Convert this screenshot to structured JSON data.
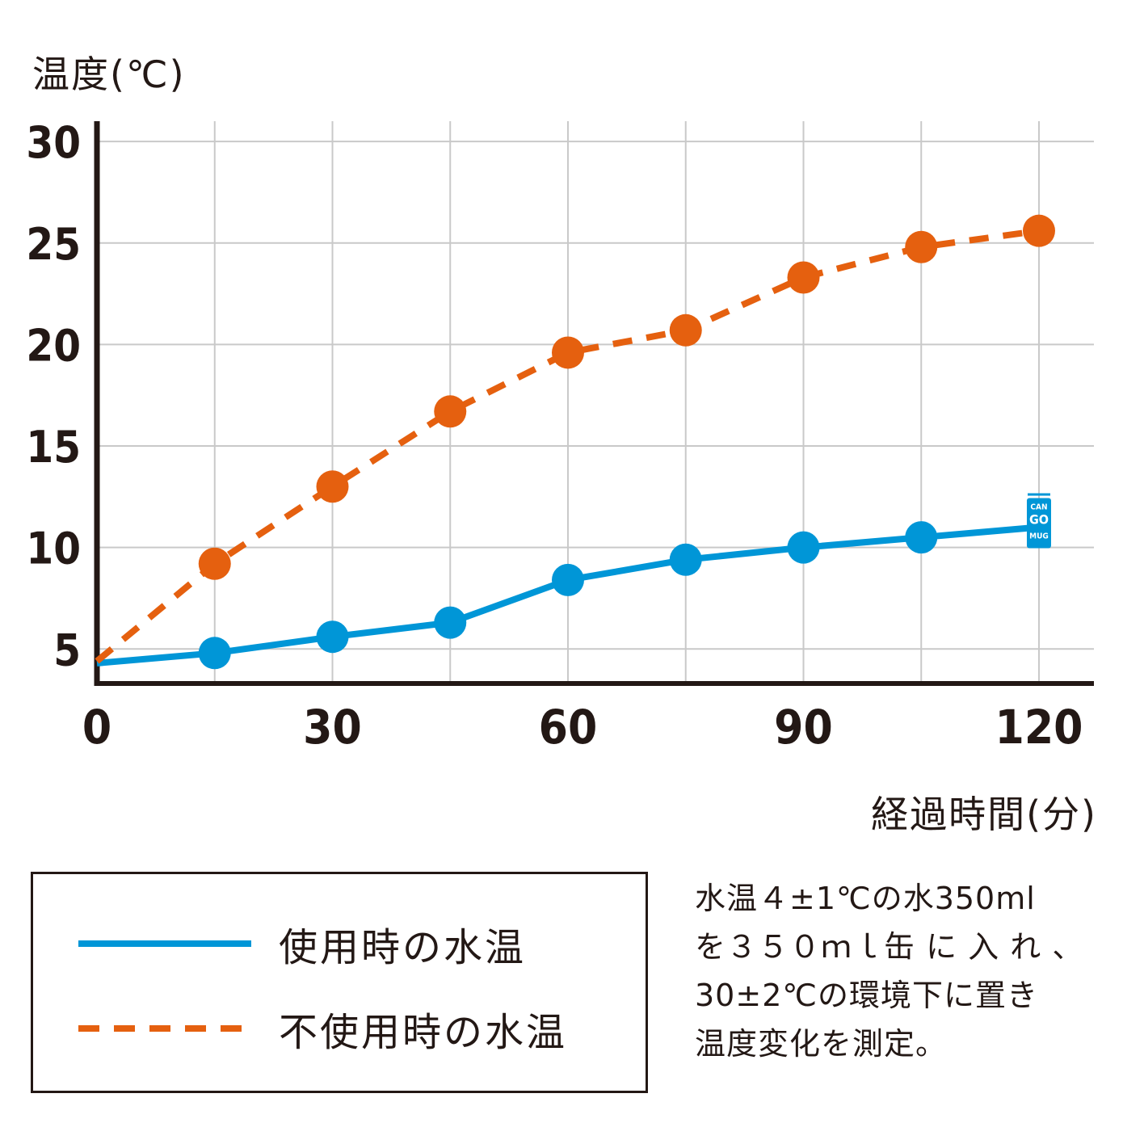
{
  "chart_data": {
    "type": "line",
    "ylabel": "温度(℃)",
    "xlabel": "経過時間(分)",
    "x": [
      0,
      15,
      30,
      45,
      60,
      75,
      90,
      105,
      120
    ],
    "x_ticks": [
      "0",
      "30",
      "60",
      "90",
      "120"
    ],
    "y_ticks": [
      "5",
      "10",
      "15",
      "20",
      "25",
      "30"
    ],
    "xlim": [
      0,
      127
    ],
    "ylim": [
      3.3,
      31
    ],
    "grid": true,
    "series": [
      {
        "name": "使用時の水温",
        "style": "solid",
        "color": "#0096d7",
        "values": [
          4.3,
          4.8,
          5.6,
          6.3,
          8.4,
          9.4,
          10.0,
          10.5,
          11.0
        ]
      },
      {
        "name": "不使用時の水温",
        "style": "dashed",
        "color": "#e5600f",
        "values": [
          4.4,
          9.2,
          13.0,
          16.7,
          19.6,
          20.7,
          23.3,
          24.8,
          25.6
        ]
      }
    ],
    "annotation_icon": {
      "text_lines": [
        "CAN",
        "GO",
        "MUG"
      ],
      "color": "#0096d7"
    }
  },
  "legend": {
    "items": [
      {
        "label": "使用時の水温"
      },
      {
        "label": "不使用時の水温"
      }
    ]
  },
  "note": {
    "lines": [
      "水温４±1℃の水350ml",
      "を３５０ｍｌ缶 に 入 れ 、",
      "30±2℃の環境下に置き",
      "温度変化を測定。"
    ]
  }
}
